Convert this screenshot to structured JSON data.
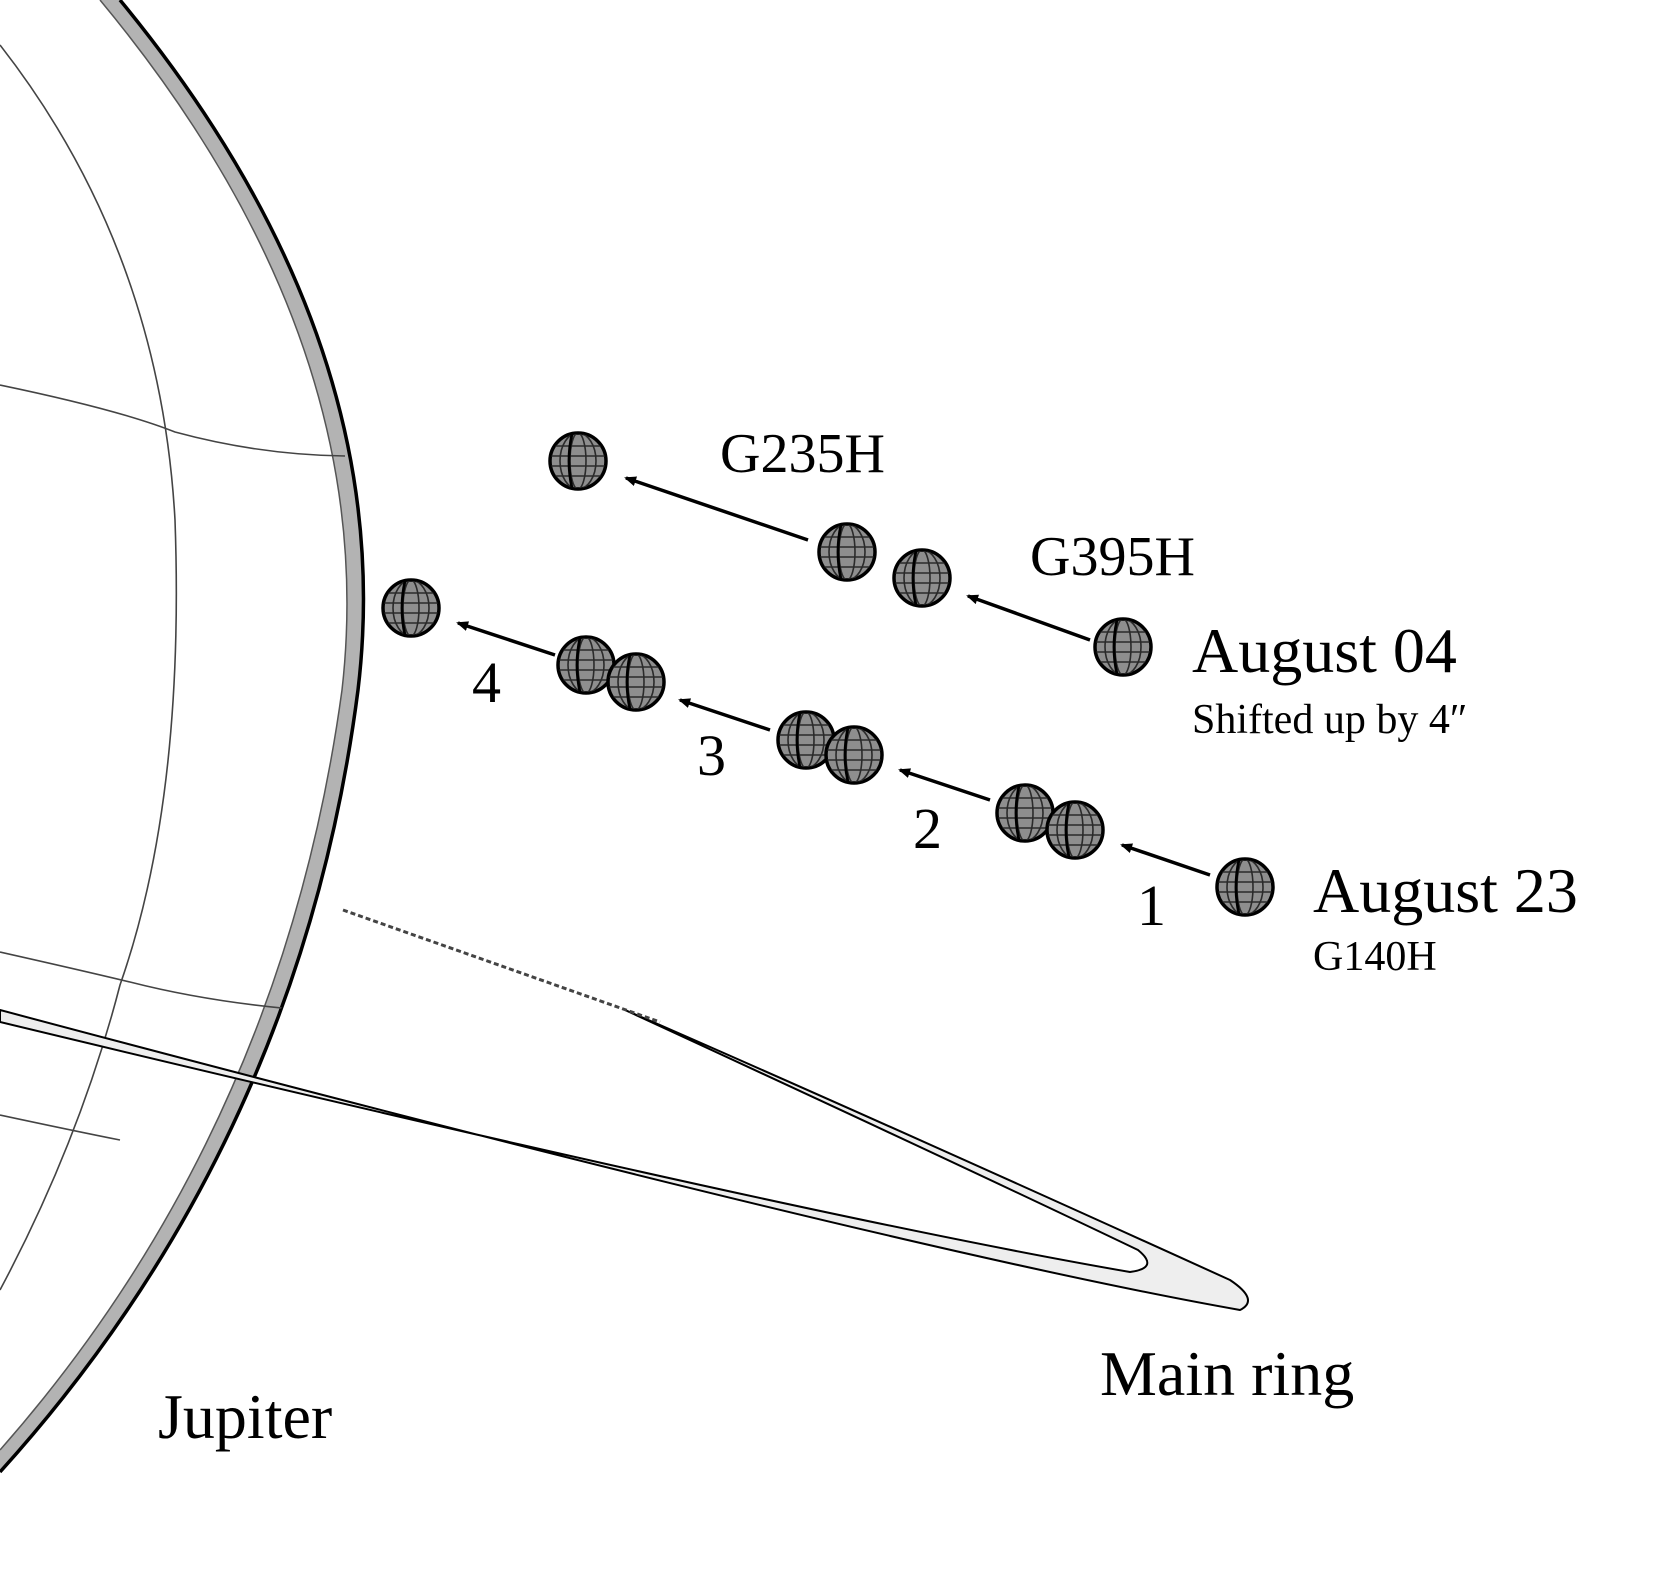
{
  "labels": {
    "jupiter": "Jupiter",
    "main_ring": "Main ring",
    "august04": "August 04",
    "august04_note": "Shifted up by 4″",
    "august23": "August 23",
    "august23_grating": "G140H",
    "grating_top": "G235H",
    "grating_mid": "G395H"
  },
  "steps": [
    "1",
    "2",
    "3",
    "4"
  ],
  "icons": {
    "moon": "gridded-sphere-icon",
    "arrow": "arrow-icon"
  },
  "colors": {
    "moon_fill": "#8e8e8e",
    "moon_grid": "#2a2a2a",
    "limb_shade": "#b3b3b3",
    "ring_fill": "#eeeeee"
  }
}
